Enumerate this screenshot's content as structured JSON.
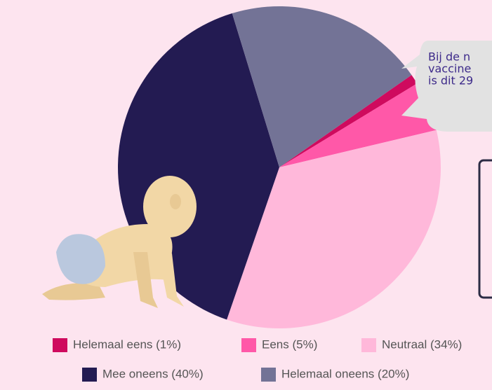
{
  "chart_data": {
    "type": "pie",
    "categories": [
      "Helemaal eens (1%)",
      "Eens (5%)",
      "Neutraal (34%)",
      "Mee oneens (40%)",
      "Helemaal oneens (20%)"
    ],
    "values": [
      1,
      5,
      34,
      40,
      20
    ],
    "colors": [
      "#cf0a5e",
      "#ff58a8",
      "#ffb8da",
      "#231b52",
      "#737396"
    ],
    "annotation": [
      "Bij de n",
      "vaccine",
      "is dit 29"
    ]
  }
}
